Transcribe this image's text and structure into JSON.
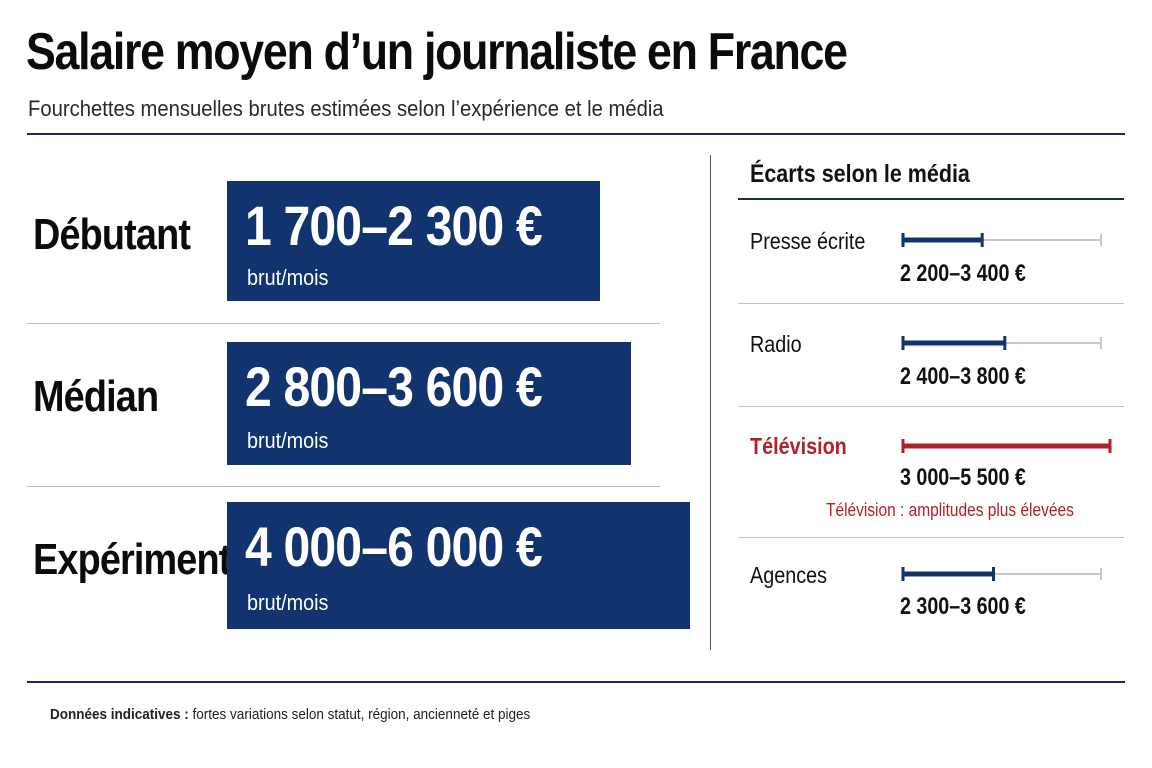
{
  "title": "Salaire moyen d’un journaliste en France",
  "subtitle": "Fourchettes mensuelles brutes estimées selon l’expérience et le média",
  "colors": {
    "navy": "#11336e",
    "red": "#b3202a",
    "track": "#c8c8c8"
  },
  "chart_data": [
    {
      "type": "table",
      "title": "",
      "unit": "brut/mois",
      "rows": [
        {
          "label": "Débutant",
          "min": 1700,
          "max": 2300,
          "text": "1 700–2 300 €"
        },
        {
          "label": "Médian",
          "min": 2800,
          "max": 3600,
          "text": "2 800–3 600 €"
        },
        {
          "label": "Expérimenté",
          "min": 4000,
          "max": 6000,
          "text": "4 000–6 000 €"
        }
      ]
    },
    {
      "type": "bar",
      "title": "Écarts selon le média",
      "scale_max": 5500,
      "series": [
        {
          "name": "Presse écrite",
          "min": 2200,
          "max": 3400,
          "text": "2 200–3 400 €",
          "highlight": false
        },
        {
          "name": "Radio",
          "min": 2400,
          "max": 3800,
          "text": "2 400–3 800 €",
          "highlight": false
        },
        {
          "name": "Télévision",
          "min": 3000,
          "max": 5500,
          "text": "3 000–5 500 €",
          "highlight": true
        },
        {
          "name": "Agences",
          "min": 2300,
          "max": 3600,
          "text": "2 300–3 600 €",
          "highlight": false
        }
      ],
      "note": "Télévision : amplitudes plus élevées"
    }
  ],
  "footnote": {
    "bold": "Données indicatives :",
    "text": " fortes variations selon statut, région, ancienneté et piges"
  }
}
